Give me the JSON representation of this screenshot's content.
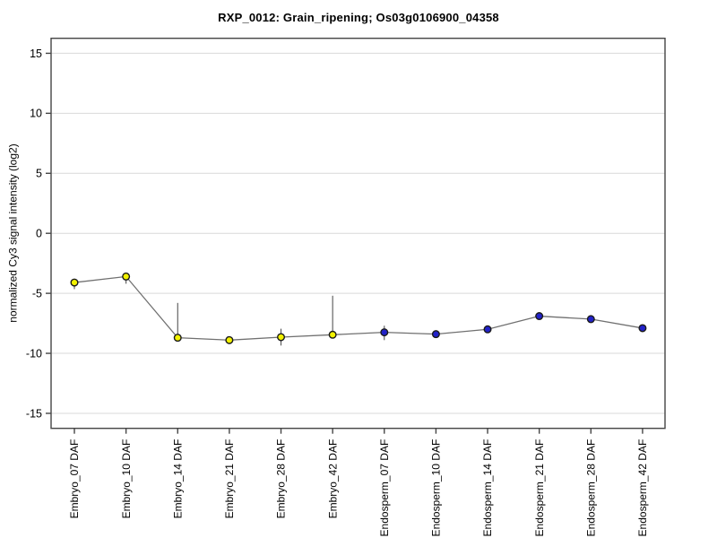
{
  "chart_data": {
    "type": "line",
    "title": "RXP_0012: Grain_ripening; Os03g0106900_04358",
    "xlabel": "",
    "ylabel": "normalized Cy3 signal intensity (log2)",
    "ylim": [
      -16.25,
      16.25
    ],
    "yticks": [
      15,
      10,
      5,
      0,
      -5,
      -10,
      -15
    ],
    "grid": "horizontal",
    "legend": "none",
    "categories": [
      "Embryo_07 DAF",
      "Embryo_10 DAF",
      "Embryo_14 DAF",
      "Embryo_21 DAF",
      "Embryo_28 DAF",
      "Embryo_42 DAF",
      "Endosperm_07 DAF",
      "Endosperm_10 DAF",
      "Endosperm_14 DAF",
      "Endosperm_21 DAF",
      "Endosperm_28 DAF",
      "Endosperm_42 DAF"
    ],
    "series": [
      {
        "name": "normalized Cy3 signal intensity (log2)",
        "values": [
          -4.1,
          -3.6,
          -8.7,
          -8.9,
          -8.65,
          -8.45,
          -8.25,
          -8.4,
          -8.0,
          -6.9,
          -7.15,
          -7.9
        ],
        "error_low": [
          -4.65,
          -4.2,
          -8.95,
          -9.0,
          -9.35,
          -8.6,
          -8.9,
          -8.6,
          -8.15,
          -7.05,
          -7.4,
          -8.05
        ],
        "error_high": [
          -3.95,
          -3.5,
          -5.8,
          -8.8,
          -7.95,
          -5.2,
          -7.7,
          -8.2,
          -7.85,
          -6.75,
          -6.9,
          -7.75
        ],
        "point_groups": [
          "Embryo",
          "Embryo",
          "Embryo",
          "Embryo",
          "Embryo",
          "Embryo",
          "Endosperm",
          "Endosperm",
          "Endosperm",
          "Endosperm",
          "Endosperm",
          "Endosperm"
        ]
      }
    ],
    "group_colors": {
      "Embryo": "#f2f200",
      "Endosperm": "#2222c8"
    },
    "colors": {
      "line": "#707070",
      "error_bar": "#555555",
      "grid": "#d9d9d9",
      "box": "#454545",
      "marker_outline": "#1a1a1a",
      "text": "#000000",
      "background": "#ffffff"
    }
  }
}
